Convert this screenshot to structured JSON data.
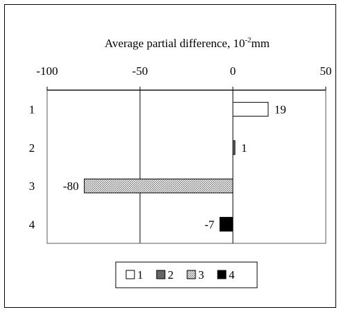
{
  "chart_data": {
    "type": "bar",
    "orientation": "horizontal",
    "title": "Average partial difference, 10",
    "title_sup": "-2",
    "title_suffix": "mm",
    "categories": [
      "1",
      "2",
      "3",
      "4"
    ],
    "values": [
      19,
      1,
      -80,
      -7
    ],
    "data_labels": [
      "19",
      "1",
      "-80",
      "-7"
    ],
    "xlim": [
      -100,
      50
    ],
    "xticks": [
      -100,
      -50,
      0,
      50
    ],
    "xtick_labels": [
      "-100",
      "-50",
      "0",
      "50"
    ],
    "x_axis_position": "top",
    "vertical_gridlines": true,
    "legend_placement": "bottom",
    "legend": [
      {
        "label": "1",
        "pattern": "white"
      },
      {
        "label": "2",
        "pattern": "dense-hatch"
      },
      {
        "label": "3",
        "pattern": "hatch"
      },
      {
        "label": "4",
        "pattern": "black"
      }
    ]
  }
}
